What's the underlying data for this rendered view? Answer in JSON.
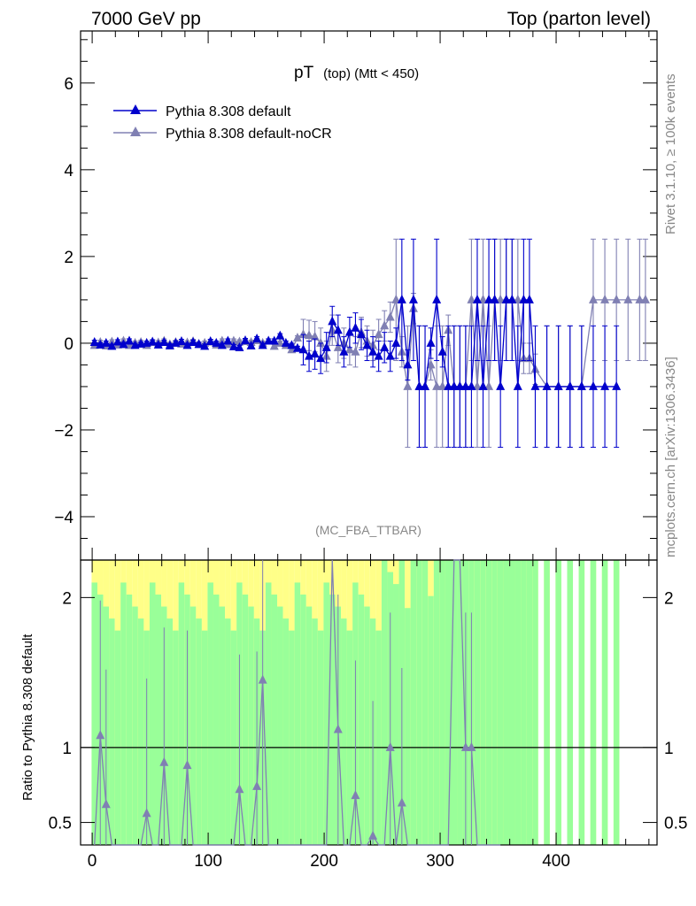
{
  "header": {
    "left": "7000 GeV pp",
    "right": "Top (parton level)"
  },
  "side": {
    "rivet": "Rivet 3.1.10, ≥ 100k events",
    "mcplots": "mcplots.cern.ch [arXiv:1306.3436]"
  },
  "chart_data": {
    "type": "line",
    "title_main": "pT",
    "title_sub": "(top) (Mtt < 450)",
    "watermark": "(MC_FBA_TTBAR)",
    "ylabel_ratio": "Ratio to Pythia 8.308 default",
    "x_ticks": [
      "0",
      "100",
      "200",
      "300",
      "400"
    ],
    "xlim": [
      -10,
      487
    ],
    "ylim": [
      -5.0,
      7.2
    ],
    "y_ticks": [
      "−4",
      "−2",
      "0",
      "2",
      "4",
      "6"
    ],
    "ratio_ylim": [
      0.35,
      2.25
    ],
    "ratio_ticks": [
      "0.5",
      "1",
      "2"
    ],
    "colors": {
      "default": "#0000cc",
      "nocr": "#8080b3",
      "band_green": "#99ff99",
      "band_yellow": "#ffff88"
    },
    "series": [
      {
        "name": "Pythia 8.308 default",
        "x": [
          2,
          7,
          12,
          17,
          22,
          27,
          32,
          37,
          42,
          47,
          52,
          57,
          62,
          67,
          72,
          77,
          82,
          87,
          92,
          97,
          102,
          107,
          112,
          117,
          122,
          127,
          132,
          137,
          142,
          147,
          152,
          157,
          162,
          167,
          172,
          177,
          182,
          187,
          192,
          197,
          202,
          207,
          212,
          217,
          222,
          227,
          232,
          237,
          242,
          247,
          252,
          257,
          262,
          267,
          272,
          277,
          282,
          287,
          292,
          297,
          302,
          307,
          312,
          317,
          322,
          327,
          332,
          337,
          342,
          347,
          352,
          357,
          362,
          367,
          372,
          377,
          382,
          392,
          402,
          412,
          422,
          432,
          442,
          452
        ],
        "y": [
          0.02,
          -0.04,
          0.0,
          -0.07,
          0.03,
          -0.03,
          0.05,
          -0.05,
          -0.02,
          0.0,
          0.03,
          -0.04,
          0.02,
          -0.06,
          0.0,
          0.04,
          -0.05,
          0.02,
          -0.03,
          -0.07,
          0.04,
          0.0,
          -0.05,
          0.05,
          -0.08,
          -0.1,
          0.06,
          -0.06,
          0.1,
          -0.05,
          0.05,
          0.05,
          0.17,
          0.0,
          -0.05,
          -0.12,
          -0.15,
          -0.3,
          -0.25,
          -0.35,
          -0.1,
          0.5,
          0.3,
          -0.2,
          0.25,
          0.35,
          0.2,
          -0.05,
          -0.2,
          -0.3,
          -0.1,
          -0.3,
          0.0,
          1.0,
          -0.5,
          1.0,
          -1.0,
          -1.0,
          0.0,
          1.0,
          -0.2,
          -1.0,
          -1.0,
          -1.0,
          -1.0,
          -1.0,
          1.0,
          -1.0,
          1.0,
          1.0,
          -1.0,
          1.0,
          1.0,
          -1.0,
          1.0,
          1.0,
          -1.0,
          -1.0,
          -1.0,
          -1.0,
          -1.0,
          -1.0,
          -1.0,
          -1.0
        ]
      },
      {
        "name": "Pythia 8.308 default-noCR",
        "x": [
          2,
          7,
          12,
          17,
          22,
          27,
          32,
          37,
          42,
          47,
          52,
          57,
          62,
          67,
          72,
          77,
          82,
          87,
          92,
          97,
          102,
          107,
          112,
          117,
          122,
          127,
          132,
          137,
          142,
          147,
          152,
          157,
          162,
          167,
          172,
          177,
          182,
          187,
          192,
          197,
          202,
          207,
          212,
          217,
          222,
          227,
          232,
          237,
          242,
          247,
          252,
          257,
          262,
          267,
          272,
          277,
          282,
          287,
          292,
          297,
          302,
          307,
          312,
          317,
          322,
          327,
          332,
          337,
          342,
          347,
          352,
          357,
          362,
          367,
          372,
          377,
          382,
          392,
          402,
          412,
          422,
          432,
          442,
          452,
          462,
          472,
          477
        ],
        "y": [
          -0.05,
          0.02,
          -0.06,
          0.03,
          -0.04,
          0.05,
          -0.05,
          0.0,
          0.02,
          -0.05,
          0.02,
          0.01,
          0.05,
          -0.03,
          0.02,
          -0.02,
          0.01,
          0.04,
          -0.02,
          0.0,
          0.03,
          -0.04,
          0.05,
          -0.03,
          0.05,
          0.03,
          0.04,
          0.02,
          0.06,
          0.0,
          0.05,
          -0.07,
          0.0,
          -0.05,
          -0.15,
          0.12,
          0.2,
          0.18,
          0.15,
          0.0,
          -0.3,
          0.3,
          -0.1,
          0.0,
          -0.15,
          -0.2,
          0.25,
          0.05,
          -0.05,
          0.2,
          0.4,
          0.6,
          1.0,
          -0.2,
          -1.0,
          0.8,
          -1.0,
          -1.0,
          -0.5,
          -1.0,
          -1.0,
          0.3,
          -1.0,
          -1.0,
          -1.0,
          1.0,
          -1.0,
          1.0,
          -1.0,
          1.0,
          1.0,
          1.0,
          1.0,
          1.0,
          -0.35,
          -0.35,
          -0.6,
          -1.0,
          -1.0,
          -1.0,
          -1.0,
          1.0,
          1.0,
          1.0,
          1.0,
          1.0,
          1.0
        ]
      }
    ],
    "ratio_series": {
      "name": "Pythia 8.308 default-noCR",
      "x": [
        2,
        7,
        12,
        17,
        22,
        27,
        32,
        37,
        42,
        47,
        52,
        57,
        62,
        67,
        72,
        77,
        82,
        87,
        92,
        97,
        102,
        107,
        112,
        117,
        122,
        127,
        132,
        137,
        142,
        147,
        152,
        157,
        162,
        167,
        172,
        177,
        182,
        187,
        192,
        197,
        202,
        207,
        212,
        217,
        222,
        227,
        232,
        237,
        242,
        247,
        252,
        257,
        262,
        267,
        272,
        277,
        282,
        287,
        292,
        297,
        302,
        307,
        312,
        317,
        322,
        327,
        332,
        337,
        342,
        347,
        352
      ],
      "y": [
        0.35,
        1.08,
        0.62,
        0.35,
        0.35,
        0.35,
        0.35,
        0.35,
        0.35,
        0.56,
        0.35,
        0.35,
        0.9,
        0.35,
        0.35,
        0.35,
        0.88,
        0.35,
        0.35,
        0.35,
        0.35,
        0.35,
        0.35,
        0.35,
        0.35,
        0.72,
        0.35,
        0.35,
        0.74,
        1.45,
        0.35,
        0.35,
        0.35,
        0.35,
        0.35,
        0.35,
        0.35,
        0.35,
        0.35,
        0.35,
        0.35,
        2.3,
        1.12,
        0.35,
        0.35,
        0.68,
        0.35,
        0.35,
        0.41,
        0.35,
        0.35,
        1.0,
        0.35,
        0.63,
        0.35,
        0.35,
        0.35,
        0.35,
        0.35,
        0.35,
        0.35,
        0.35,
        2.3,
        2.3,
        1.0,
        1.0,
        0.35,
        0.35,
        0.35,
        0.35,
        0.35
      ]
    }
  }
}
